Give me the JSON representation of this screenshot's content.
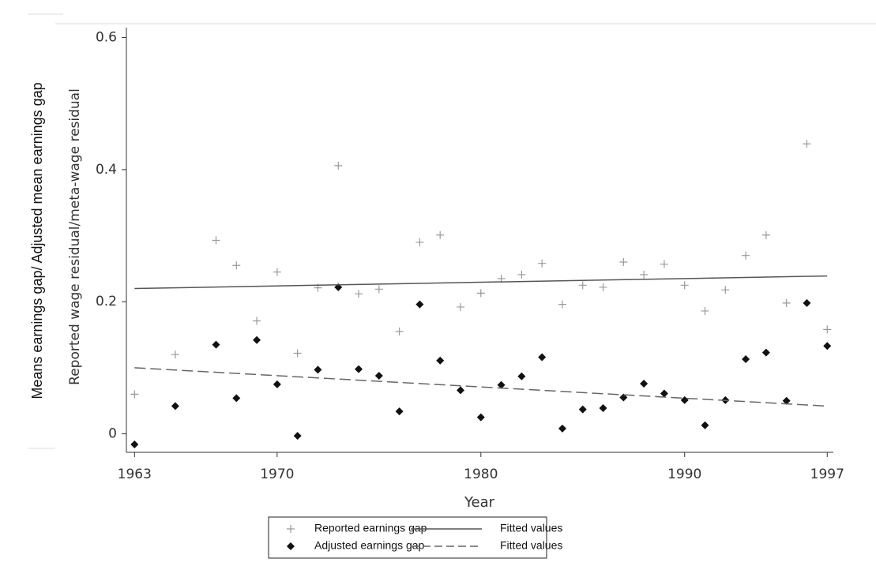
{
  "chart_data": {
    "type": "scatter",
    "outer_label": "Means earnings gap/ Adjusted mean earnings gap",
    "xlabel": "Year",
    "ylabel": "Reported wage residual/meta-wage residual",
    "xlim": [
      1962.6,
      1997.3
    ],
    "xticks": [
      1963,
      1970,
      1980,
      1990,
      1997
    ],
    "ylim": [
      -0.028,
      0.615
    ],
    "yticks": [
      0,
      0.2,
      0.4,
      0.6
    ],
    "series": [
      {
        "name": "Reported earnings gap",
        "marker": "plus",
        "color": "#999999",
        "x": [
          1963,
          1965,
          1967,
          1968,
          1969,
          1970,
          1971,
          1972,
          1973,
          1974,
          1975,
          1976,
          1977,
          1978,
          1979,
          1980,
          1981,
          1982,
          1983,
          1984,
          1985,
          1986,
          1987,
          1988,
          1989,
          1990,
          1991,
          1992,
          1993,
          1994,
          1995,
          1996,
          1997
        ],
        "values": [
          0.06,
          0.12,
          0.293,
          0.255,
          0.171,
          0.245,
          0.122,
          0.221,
          0.406,
          0.212,
          0.219,
          0.155,
          0.29,
          0.301,
          0.192,
          0.213,
          0.235,
          0.241,
          0.258,
          0.196,
          0.225,
          0.222,
          0.26,
          0.241,
          0.257,
          0.225,
          0.186,
          0.218,
          0.27,
          0.301,
          0.198,
          0.439,
          0.158
        ]
      },
      {
        "name": "Adjusted earnings gap",
        "marker": "diamond",
        "color": "#111111",
        "x": [
          1963,
          1965,
          1967,
          1968,
          1969,
          1970,
          1971,
          1972,
          1973,
          1974,
          1975,
          1976,
          1977,
          1978,
          1979,
          1980,
          1981,
          1982,
          1983,
          1984,
          1985,
          1986,
          1987,
          1988,
          1989,
          1990,
          1991,
          1992,
          1993,
          1994,
          1995,
          1996,
          1997
        ],
        "values": [
          -0.016,
          0.042,
          0.135,
          0.054,
          0.142,
          0.075,
          -0.003,
          0.097,
          0.222,
          0.098,
          0.088,
          0.034,
          0.196,
          0.111,
          0.066,
          0.025,
          0.074,
          0.087,
          0.116,
          0.008,
          0.037,
          0.039,
          0.055,
          0.076,
          0.061,
          0.051,
          0.013,
          0.051,
          0.113,
          0.123,
          0.05,
          0.198,
          0.133
        ]
      },
      {
        "name": "Fitted values",
        "marker": "line",
        "dash": "solid",
        "color": "#555555",
        "x": [
          1963,
          1997
        ],
        "values": [
          0.22,
          0.239
        ]
      },
      {
        "name": "Fitted values",
        "marker": "line",
        "dash": "dashed",
        "color": "#666666",
        "x": [
          1963,
          1997
        ],
        "values": [
          0.1,
          0.042
        ]
      }
    ]
  }
}
